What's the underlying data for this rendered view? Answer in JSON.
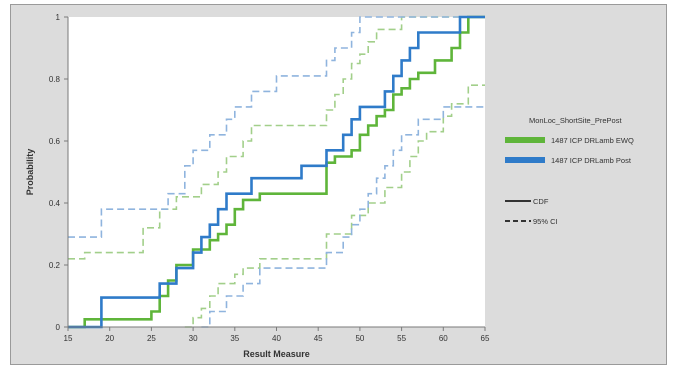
{
  "chart_data": {
    "type": "line",
    "xlabel": "Result Measure",
    "ylabel": "Probability",
    "xlim": [
      15,
      65
    ],
    "ylim": [
      0,
      1
    ],
    "x_ticks": [
      15,
      20,
      25,
      30,
      35,
      40,
      45,
      50,
      55,
      60,
      65
    ],
    "y_ticks": [
      0,
      0.2,
      0.4,
      0.6,
      0.8,
      1
    ],
    "grid": false,
    "legend": {
      "position": "right",
      "title": "MonLoc_ShortSite_PrePost",
      "line_styles": [
        {
          "label": "CDF",
          "style": "solid"
        },
        {
          "label": "95% CI",
          "style": "dashed"
        }
      ]
    },
    "colors": {
      "ewq": "#5fb53a",
      "post": "#2f7bc9",
      "ewq_ci": "#a2cf8a",
      "post_ci": "#8fb4de"
    },
    "series": [
      {
        "name": "1487 ICP DRLamb EWQ",
        "color_key": "ewq",
        "cdf": [
          [
            15,
            0
          ],
          [
            17,
            0
          ],
          [
            17,
            0.025
          ],
          [
            25,
            0.025
          ],
          [
            25,
            0.05
          ],
          [
            26,
            0.05
          ],
          [
            26,
            0.1
          ],
          [
            27,
            0.1
          ],
          [
            27,
            0.15
          ],
          [
            28,
            0.15
          ],
          [
            28,
            0.2
          ],
          [
            30,
            0.2
          ],
          [
            30,
            0.25
          ],
          [
            32,
            0.25
          ],
          [
            32,
            0.28
          ],
          [
            33,
            0.28
          ],
          [
            33,
            0.3
          ],
          [
            34,
            0.3
          ],
          [
            34,
            0.33
          ],
          [
            35,
            0.33
          ],
          [
            35,
            0.38
          ],
          [
            36,
            0.38
          ],
          [
            36,
            0.41
          ],
          [
            38,
            0.41
          ],
          [
            38,
            0.43
          ],
          [
            46,
            0.43
          ],
          [
            46,
            0.53
          ],
          [
            47,
            0.53
          ],
          [
            47,
            0.55
          ],
          [
            49,
            0.55
          ],
          [
            49,
            0.57
          ],
          [
            50,
            0.57
          ],
          [
            50,
            0.62
          ],
          [
            51,
            0.62
          ],
          [
            51,
            0.65
          ],
          [
            52,
            0.65
          ],
          [
            52,
            0.68
          ],
          [
            53,
            0.68
          ],
          [
            53,
            0.7
          ],
          [
            54,
            0.7
          ],
          [
            54,
            0.75
          ],
          [
            55,
            0.75
          ],
          [
            55,
            0.77
          ],
          [
            56,
            0.77
          ],
          [
            56,
            0.8
          ],
          [
            57,
            0.8
          ],
          [
            57,
            0.82
          ],
          [
            59,
            0.82
          ],
          [
            59,
            0.86
          ],
          [
            61,
            0.86
          ],
          [
            61,
            0.9
          ],
          [
            62,
            0.9
          ],
          [
            62,
            0.95
          ],
          [
            63,
            0.95
          ],
          [
            63,
            1
          ],
          [
            65,
            1
          ]
        ],
        "ci_upper": [
          [
            15,
            0.22
          ],
          [
            17,
            0.22
          ],
          [
            17,
            0.24
          ],
          [
            24,
            0.24
          ],
          [
            24,
            0.32
          ],
          [
            26,
            0.32
          ],
          [
            26,
            0.38
          ],
          [
            28,
            0.38
          ],
          [
            28,
            0.42
          ],
          [
            31,
            0.42
          ],
          [
            31,
            0.46
          ],
          [
            33,
            0.46
          ],
          [
            33,
            0.5
          ],
          [
            34,
            0.5
          ],
          [
            34,
            0.55
          ],
          [
            36,
            0.55
          ],
          [
            36,
            0.6
          ],
          [
            37,
            0.6
          ],
          [
            37,
            0.65
          ],
          [
            46,
            0.65
          ],
          [
            46,
            0.7
          ],
          [
            47,
            0.7
          ],
          [
            47,
            0.75
          ],
          [
            48,
            0.75
          ],
          [
            48,
            0.8
          ],
          [
            49,
            0.8
          ],
          [
            49,
            0.85
          ],
          [
            50,
            0.85
          ],
          [
            50,
            0.88
          ],
          [
            51,
            0.88
          ],
          [
            51,
            0.92
          ],
          [
            52,
            0.92
          ],
          [
            52,
            0.96
          ],
          [
            55,
            0.96
          ],
          [
            55,
            1
          ],
          [
            65,
            1
          ]
        ],
        "ci_lower": [
          [
            29,
            0
          ],
          [
            30,
            0
          ],
          [
            30,
            0.03
          ],
          [
            31,
            0.03
          ],
          [
            31,
            0.06
          ],
          [
            32,
            0.06
          ],
          [
            32,
            0.1
          ],
          [
            33,
            0.1
          ],
          [
            33,
            0.14
          ],
          [
            35,
            0.14
          ],
          [
            35,
            0.17
          ],
          [
            36,
            0.17
          ],
          [
            36,
            0.19
          ],
          [
            38,
            0.19
          ],
          [
            38,
            0.22
          ],
          [
            46,
            0.22
          ],
          [
            46,
            0.3
          ],
          [
            49,
            0.3
          ],
          [
            49,
            0.36
          ],
          [
            51,
            0.36
          ],
          [
            51,
            0.4
          ],
          [
            53,
            0.4
          ],
          [
            53,
            0.45
          ],
          [
            55,
            0.45
          ],
          [
            55,
            0.5
          ],
          [
            56,
            0.5
          ],
          [
            56,
            0.55
          ],
          [
            57,
            0.55
          ],
          [
            57,
            0.6
          ],
          [
            58,
            0.6
          ],
          [
            58,
            0.63
          ],
          [
            60,
            0.63
          ],
          [
            60,
            0.68
          ],
          [
            61,
            0.68
          ],
          [
            61,
            0.72
          ],
          [
            63,
            0.72
          ],
          [
            63,
            0.78
          ],
          [
            65,
            0.78
          ]
        ]
      },
      {
        "name": "1487 ICP DRLamb Post",
        "color_key": "post",
        "cdf": [
          [
            15,
            0
          ],
          [
            19,
            0
          ],
          [
            19,
            0.095
          ],
          [
            26,
            0.095
          ],
          [
            26,
            0.14
          ],
          [
            28,
            0.14
          ],
          [
            28,
            0.19
          ],
          [
            30,
            0.19
          ],
          [
            30,
            0.24
          ],
          [
            31,
            0.24
          ],
          [
            31,
            0.29
          ],
          [
            32,
            0.29
          ],
          [
            32,
            0.33
          ],
          [
            33,
            0.33
          ],
          [
            33,
            0.38
          ],
          [
            34,
            0.38
          ],
          [
            34,
            0.43
          ],
          [
            37,
            0.43
          ],
          [
            37,
            0.48
          ],
          [
            43,
            0.48
          ],
          [
            43,
            0.52
          ],
          [
            46,
            0.52
          ],
          [
            46,
            0.57
          ],
          [
            48,
            0.57
          ],
          [
            48,
            0.62
          ],
          [
            49,
            0.62
          ],
          [
            49,
            0.67
          ],
          [
            50,
            0.67
          ],
          [
            50,
            0.71
          ],
          [
            53,
            0.71
          ],
          [
            53,
            0.76
          ],
          [
            54,
            0.76
          ],
          [
            54,
            0.81
          ],
          [
            55,
            0.81
          ],
          [
            55,
            0.86
          ],
          [
            56,
            0.86
          ],
          [
            56,
            0.9
          ],
          [
            57,
            0.9
          ],
          [
            57,
            0.95
          ],
          [
            62,
            0.95
          ],
          [
            62,
            1
          ],
          [
            65,
            1
          ]
        ],
        "ci_upper": [
          [
            15,
            0.29
          ],
          [
            17,
            0.29
          ],
          [
            17,
            0.29
          ],
          [
            19,
            0.29
          ],
          [
            19,
            0.38
          ],
          [
            27,
            0.38
          ],
          [
            27,
            0.43
          ],
          [
            29,
            0.43
          ],
          [
            29,
            0.52
          ],
          [
            30,
            0.52
          ],
          [
            30,
            0.57
          ],
          [
            32,
            0.57
          ],
          [
            32,
            0.62
          ],
          [
            34,
            0.62
          ],
          [
            34,
            0.67
          ],
          [
            35,
            0.67
          ],
          [
            35,
            0.71
          ],
          [
            37,
            0.71
          ],
          [
            37,
            0.76
          ],
          [
            40,
            0.76
          ],
          [
            40,
            0.81
          ],
          [
            46,
            0.81
          ],
          [
            46,
            0.86
          ],
          [
            47,
            0.86
          ],
          [
            47,
            0.9
          ],
          [
            49,
            0.9
          ],
          [
            49,
            0.95
          ],
          [
            50,
            0.95
          ],
          [
            50,
            1
          ],
          [
            65,
            1
          ]
        ],
        "ci_lower": [
          [
            31,
            0
          ],
          [
            32,
            0
          ],
          [
            32,
            0.05
          ],
          [
            34,
            0.05
          ],
          [
            34,
            0.1
          ],
          [
            36,
            0.1
          ],
          [
            36,
            0.14
          ],
          [
            38,
            0.14
          ],
          [
            38,
            0.19
          ],
          [
            46,
            0.19
          ],
          [
            46,
            0.24
          ],
          [
            48,
            0.24
          ],
          [
            48,
            0.29
          ],
          [
            49,
            0.29
          ],
          [
            49,
            0.33
          ],
          [
            50,
            0.33
          ],
          [
            50,
            0.38
          ],
          [
            51,
            0.38
          ],
          [
            51,
            0.43
          ],
          [
            52,
            0.43
          ],
          [
            52,
            0.48
          ],
          [
            53,
            0.48
          ],
          [
            53,
            0.52
          ],
          [
            54,
            0.52
          ],
          [
            54,
            0.57
          ],
          [
            55,
            0.57
          ],
          [
            55,
            0.62
          ],
          [
            57,
            0.62
          ],
          [
            57,
            0.67
          ],
          [
            60,
            0.67
          ],
          [
            60,
            0.71
          ],
          [
            65,
            0.71
          ]
        ]
      }
    ]
  }
}
